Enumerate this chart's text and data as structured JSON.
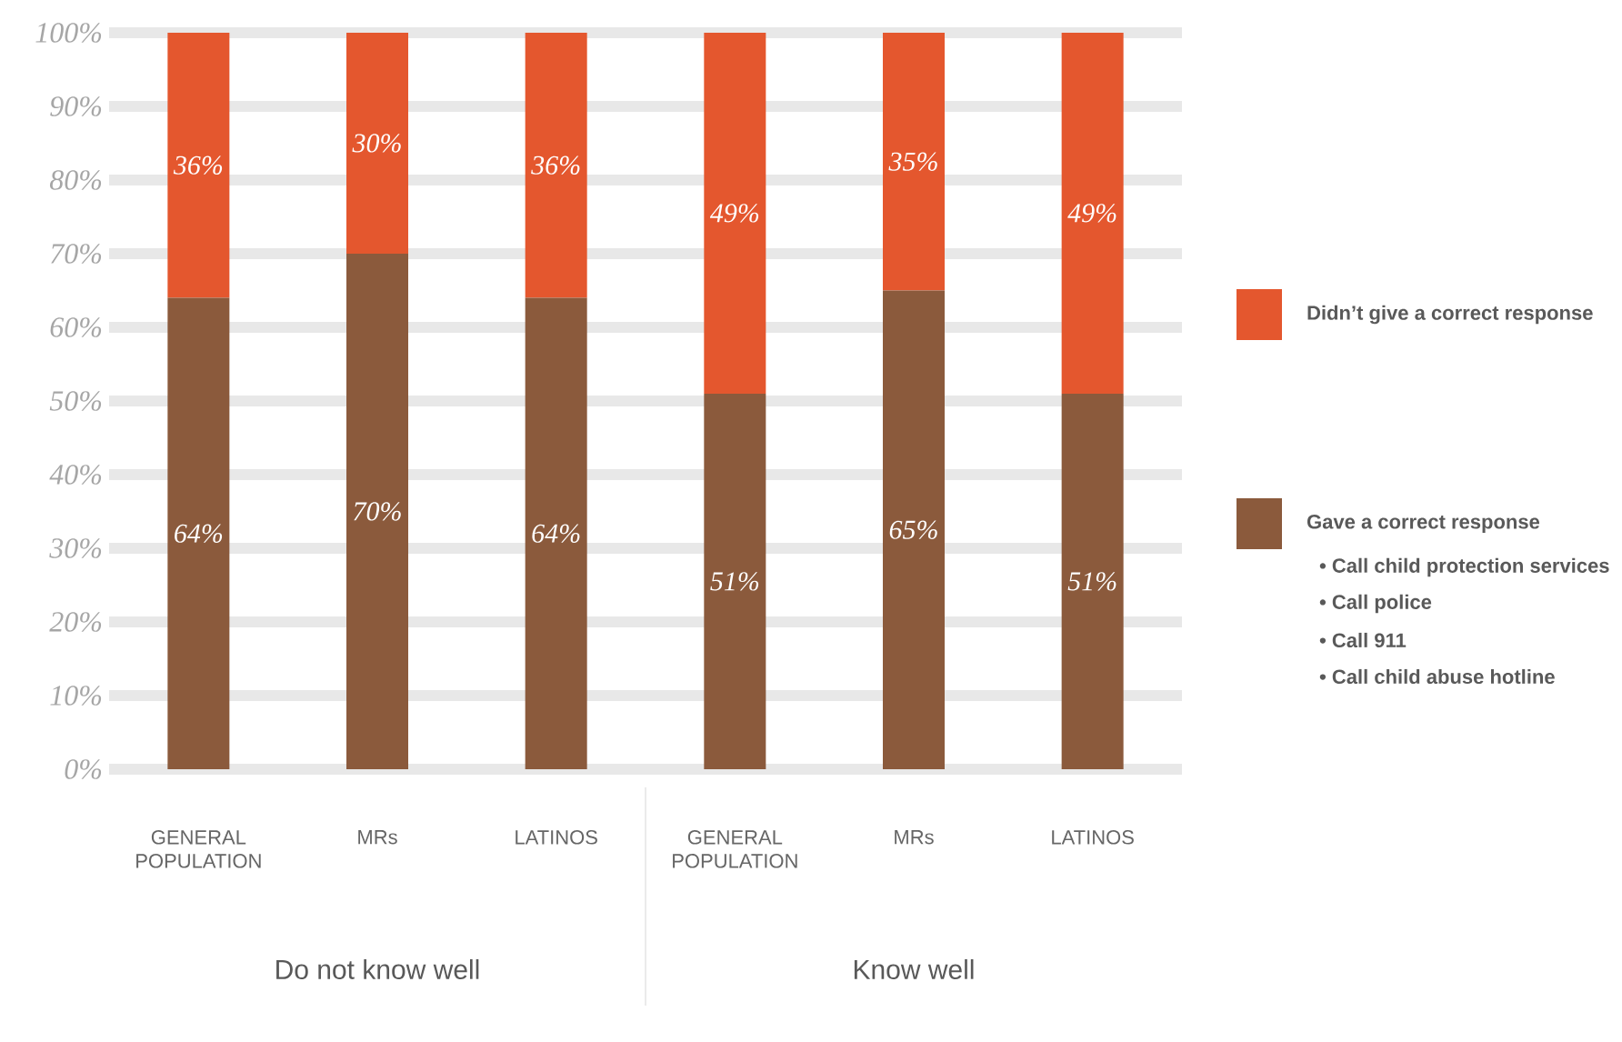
{
  "chart_data": {
    "type": "bar",
    "stacked": true,
    "categories": [
      "GENERAL POPULATION",
      "MRs",
      "LATINOS",
      "GENERAL POPULATION",
      "MRs",
      "LATINOS"
    ],
    "series": [
      {
        "name": "Gave a correct response",
        "color": "#8b5a3c",
        "values": [
          64,
          70,
          64,
          51,
          65,
          51
        ],
        "value_labels": [
          "64%",
          "70%",
          "64%",
          "51%",
          "65%",
          "51%"
        ]
      },
      {
        "name": "Didn’t give a correct response",
        "color": "#e4572e",
        "values": [
          36,
          30,
          36,
          49,
          35,
          49
        ],
        "value_labels": [
          "36%",
          "30%",
          "36%",
          "49%",
          "35%",
          "49%"
        ]
      }
    ],
    "ylim": [
      0,
      100
    ],
    "yticks": [
      {
        "value": 0,
        "label": "0%"
      },
      {
        "value": 10,
        "label": "10%"
      },
      {
        "value": 20,
        "label": "20%"
      },
      {
        "value": 30,
        "label": "30%"
      },
      {
        "value": 40,
        "label": "40%"
      },
      {
        "value": 50,
        "label": "50%"
      },
      {
        "value": 60,
        "label": "60%"
      },
      {
        "value": 70,
        "label": "70%"
      },
      {
        "value": 80,
        "label": "80%"
      },
      {
        "value": 90,
        "label": "90%"
      },
      {
        "value": 100,
        "label": "100%"
      }
    ],
    "grid": "y",
    "legend": "right",
    "annotations": [
      "Do not know well",
      "Know well",
      "• Call child protection services",
      "• Call police",
      "• Call 911",
      "• Call child abuse hotline"
    ]
  }
}
